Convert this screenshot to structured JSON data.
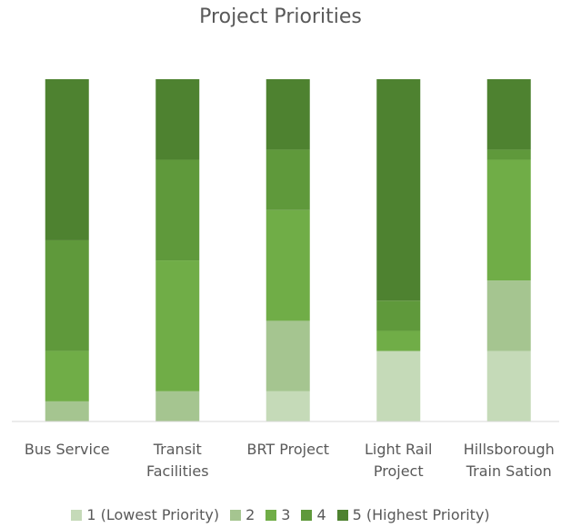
{
  "chart_data": {
    "type": "stacked_bar_100",
    "title": "Project Priorities",
    "categories": [
      "Bus Service",
      "Transit Facilities",
      "BRT Project",
      "Light Rail Project",
      "Hillsborough Train Sation"
    ],
    "series": [
      {
        "name": "1 (Lowest Priority)",
        "color": "#c5dab8",
        "values": [
          0,
          0,
          3,
          7,
          7
        ]
      },
      {
        "name": "2",
        "color": "#a5c590",
        "values": [
          2,
          3,
          7,
          0,
          7
        ]
      },
      {
        "name": "3",
        "color": "#70ad47",
        "values": [
          5,
          13,
          11,
          2,
          12
        ]
      },
      {
        "name": "4",
        "color": "#5f993b",
        "values": [
          11,
          10,
          6,
          3,
          1
        ]
      },
      {
        "name": "5 (Highest Priority)",
        "color": "#4e8230",
        "values": [
          16,
          8,
          7,
          22,
          7
        ]
      }
    ],
    "legend": "bottom"
  }
}
